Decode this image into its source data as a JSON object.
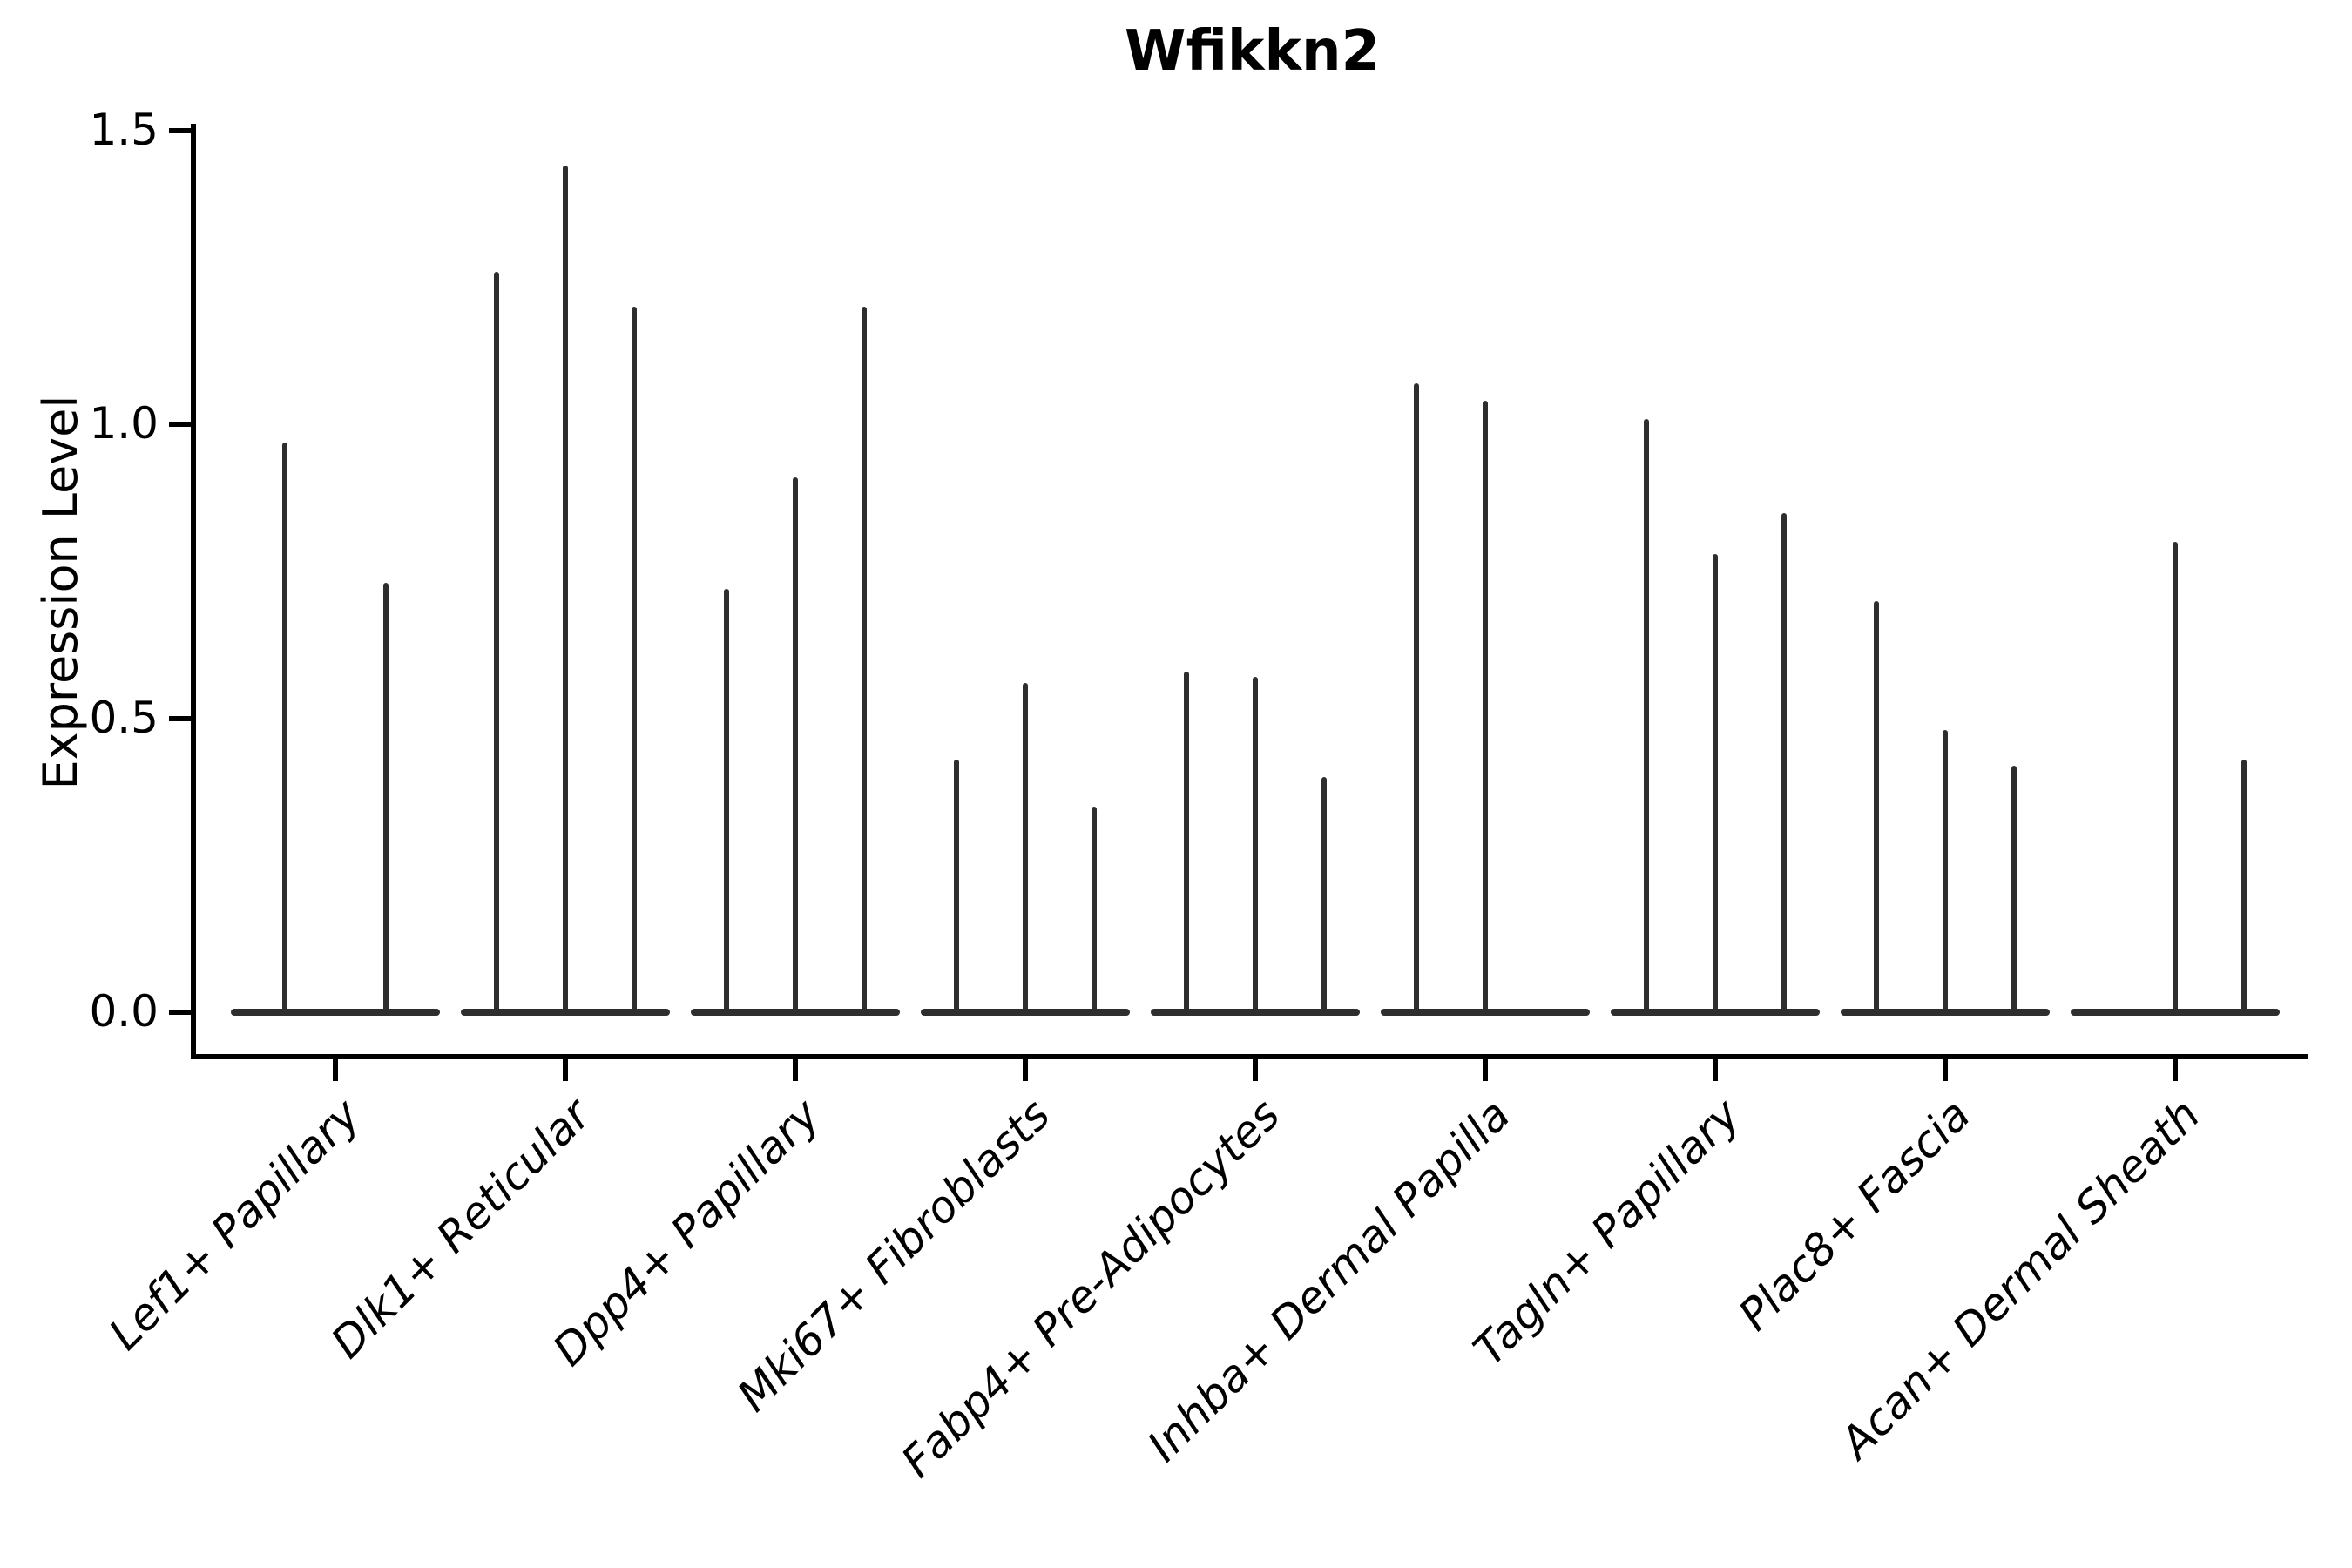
{
  "title": "Wfikkn2",
  "ylabel": "Expression Level",
  "chart_data": {
    "type": "violin",
    "title": "Wfikkn2",
    "xlabel": "",
    "ylabel": "Expression Level",
    "ylim": [
      0.0,
      1.5
    ],
    "yticks": [
      "0.0",
      "0.5",
      "1.0",
      "1.5"
    ],
    "grid": false,
    "legend": "none",
    "description": "Violin plot of Wfikkn2 expression per fibroblast cluster; each cluster shows 2-3 thin dodged violins that are flat at 0 with a single narrow spike up to the max expression value.",
    "categories": [
      "Lef1+ Papillary",
      "Dlk1+ Reticular",
      "Dpp4+ Papillary",
      "Mki67+ Fibroblasts",
      "Fabp4+ Pre-Adipocytes",
      "Inhba+ Dermal Papilla",
      "Tagln+ Papillary",
      "Plac8+ Fascia",
      "Acan+ Dermal Sheath"
    ],
    "violins": [
      {
        "category": "Lef1+ Papillary",
        "spikes": [
          {
            "offset_frac": -0.22,
            "peak": 0.97
          },
          {
            "offset_frac": 0.22,
            "peak": 0.73
          }
        ]
      },
      {
        "category": "Dlk1+ Reticular",
        "spikes": [
          {
            "offset_frac": -0.3,
            "peak": 1.26
          },
          {
            "offset_frac": 0.0,
            "peak": 1.44
          },
          {
            "offset_frac": 0.3,
            "peak": 1.2
          }
        ]
      },
      {
        "category": "Dpp4+ Papillary",
        "spikes": [
          {
            "offset_frac": -0.3,
            "peak": 0.72
          },
          {
            "offset_frac": 0.0,
            "peak": 0.91
          },
          {
            "offset_frac": 0.3,
            "peak": 1.2
          }
        ]
      },
      {
        "category": "Mki67+ Fibroblasts",
        "spikes": [
          {
            "offset_frac": -0.3,
            "peak": 0.43
          },
          {
            "offset_frac": 0.0,
            "peak": 0.56
          },
          {
            "offset_frac": 0.3,
            "peak": 0.35
          }
        ]
      },
      {
        "category": "Fabp4+ Pre-Adipocytes",
        "spikes": [
          {
            "offset_frac": -0.3,
            "peak": 0.58
          },
          {
            "offset_frac": 0.0,
            "peak": 0.57
          },
          {
            "offset_frac": 0.3,
            "peak": 0.4
          }
        ]
      },
      {
        "category": "Inhba+ Dermal Papilla",
        "spikes": [
          {
            "offset_frac": -0.3,
            "peak": 1.07
          },
          {
            "offset_frac": 0.0,
            "peak": 1.04
          },
          {
            "offset_frac": 0.3,
            "peak": 0.0
          }
        ]
      },
      {
        "category": "Tagln+ Papillary",
        "spikes": [
          {
            "offset_frac": -0.3,
            "peak": 1.01
          },
          {
            "offset_frac": 0.0,
            "peak": 0.78
          },
          {
            "offset_frac": 0.3,
            "peak": 0.85
          }
        ]
      },
      {
        "category": "Plac8+ Fascia",
        "spikes": [
          {
            "offset_frac": -0.3,
            "peak": 0.7
          },
          {
            "offset_frac": 0.0,
            "peak": 0.48
          },
          {
            "offset_frac": 0.3,
            "peak": 0.42
          }
        ]
      },
      {
        "category": "Acan+ Dermal Sheath",
        "spikes": [
          {
            "offset_frac": -0.3,
            "peak": 0.0
          },
          {
            "offset_frac": 0.0,
            "peak": 0.8
          },
          {
            "offset_frac": 0.3,
            "peak": 0.43
          }
        ]
      }
    ],
    "colors": {
      "violin": "#2e2e2e",
      "axis": "#000000",
      "text": "#000000",
      "background": "#ffffff"
    }
  }
}
